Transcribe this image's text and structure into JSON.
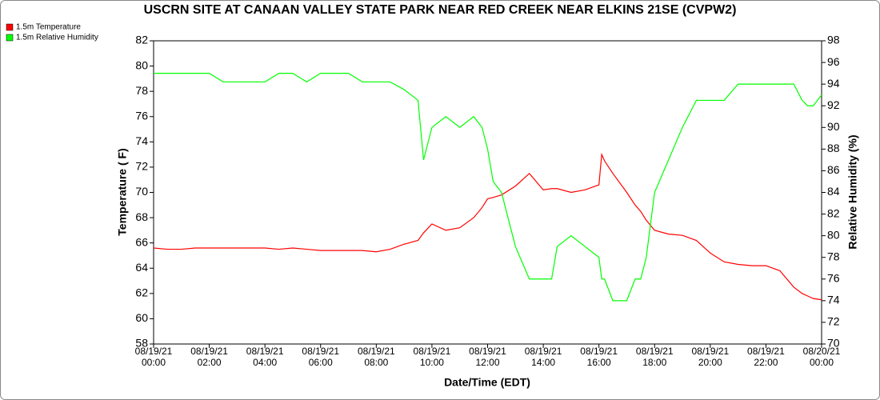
{
  "chart_data": {
    "type": "line",
    "title": "USCRN SITE AT CANAAN VALLEY STATE PARK NEAR RED CREEK NEAR ELKINS 21SE (CVPW2)",
    "x_label": "Date/Time (EDT)",
    "y_label": "Temperature ( F)",
    "y2_label": "Relative Humidity (%)",
    "legend": "top-left",
    "x": [
      0,
      0.5,
      1,
      1.5,
      2,
      2.5,
      3,
      3.5,
      4,
      4.5,
      5,
      5.5,
      6,
      6.5,
      7,
      7.5,
      8,
      8.5,
      9,
      9.5,
      9.7,
      10,
      10.5,
      11,
      11.5,
      11.8,
      12,
      12.2,
      12.5,
      13,
      13.5,
      14,
      14.3,
      14.5,
      15,
      15.5,
      16,
      16.1,
      16.2,
      16.5,
      17,
      17.3,
      17.5,
      17.7,
      18,
      18.5,
      19,
      19.5,
      20,
      20.5,
      21,
      21.5,
      22,
      22.5,
      23,
      23.3,
      23.5,
      23.7,
      24
    ],
    "xlim": [
      0,
      24
    ],
    "xticks": [
      {
        "value": 0,
        "label": "08/19/21\n00:00"
      },
      {
        "value": 2,
        "label": "08/19/21\n02:00"
      },
      {
        "value": 4,
        "label": "08/19/21\n04:00"
      },
      {
        "value": 6,
        "label": "08/19/21\n06:00"
      },
      {
        "value": 8,
        "label": "08/19/21\n08:00"
      },
      {
        "value": 10,
        "label": "08/19/21\n10:00"
      },
      {
        "value": 12,
        "label": "08/19/21\n12:00"
      },
      {
        "value": 14,
        "label": "08/19/21\n14:00"
      },
      {
        "value": 16,
        "label": "08/19/21\n16:00"
      },
      {
        "value": 18,
        "label": "08/19/21\n18:00"
      },
      {
        "value": 20,
        "label": "08/19/21\n20:00"
      },
      {
        "value": 22,
        "label": "08/19/21\n22:00"
      },
      {
        "value": 24,
        "label": "08/20/21\n00:00"
      }
    ],
    "ylim": [
      58,
      82
    ],
    "yticks": [
      58,
      60,
      62,
      64,
      66,
      68,
      70,
      72,
      74,
      76,
      78,
      80,
      82
    ],
    "y2lim": [
      70,
      98
    ],
    "y2ticks": [
      70,
      72,
      74,
      76,
      78,
      80,
      82,
      84,
      86,
      88,
      90,
      92,
      94,
      96,
      98
    ],
    "series": [
      {
        "name": "1.5m Temperature",
        "color": "#ff0000",
        "values": [
          65.6,
          65.5,
          65.5,
          65.6,
          65.6,
          65.6,
          65.6,
          65.6,
          65.6,
          65.5,
          65.6,
          65.5,
          65.4,
          65.4,
          65.4,
          65.4,
          65.3,
          65.5,
          65.9,
          66.2,
          66.8,
          67.5,
          67.0,
          67.2,
          68.0,
          68.8,
          69.5,
          69.6,
          69.8,
          70.5,
          71.5,
          70.2,
          70.3,
          70.3,
          70.0,
          70.2,
          70.6,
          73.0,
          72.5,
          71.5,
          70.0,
          69.0,
          68.5,
          67.8,
          67.0,
          66.7,
          66.6,
          66.2,
          65.2,
          64.5,
          64.3,
          64.2,
          64.2,
          63.8,
          62.5,
          62.0,
          61.8,
          61.6,
          61.5
        ]
      },
      {
        "name": "1.5m Relative Humidity",
        "color": "#00ff00",
        "axis": "y2",
        "values": [
          95,
          95,
          95,
          95,
          95,
          94.2,
          94.2,
          94.2,
          94.2,
          95,
          95,
          94.2,
          95,
          95,
          95,
          94.2,
          94.2,
          94.2,
          93.5,
          92.5,
          87,
          90,
          91,
          90,
          91,
          90,
          88,
          85,
          84,
          79,
          76,
          76,
          76,
          79,
          80,
          79,
          78,
          76,
          76,
          74,
          74,
          76,
          76,
          78,
          84,
          87,
          90,
          92.5,
          92.5,
          92.5,
          94,
          94,
          94,
          94,
          94,
          92.5,
          92,
          92,
          93
        ]
      }
    ]
  }
}
